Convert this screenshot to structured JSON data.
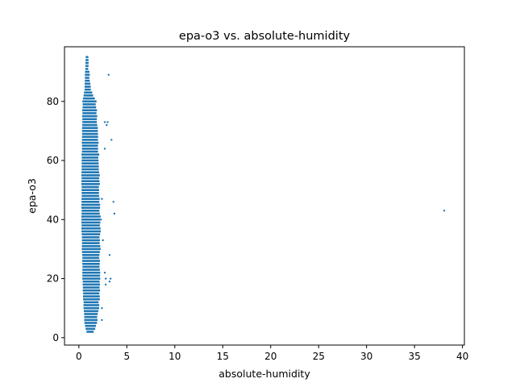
{
  "chart_data": {
    "type": "scatter",
    "title": "epa-o3 vs. absolute-humidity",
    "xlabel": "absolute-humidity",
    "ylabel": "epa-o3",
    "xlim": [
      -1.5,
      40.2
    ],
    "ylim": [
      -2.5,
      98.5
    ],
    "xticks": [
      0,
      5,
      10,
      15,
      20,
      25,
      30,
      35,
      40
    ],
    "yticks": [
      0,
      20,
      40,
      60,
      80
    ],
    "xtick_labels": [
      "0",
      "5",
      "10",
      "15",
      "20",
      "25",
      "30",
      "35",
      "40"
    ],
    "ytick_labels": [
      "0",
      "20",
      "40",
      "60",
      "80"
    ],
    "grid": false,
    "point_color": "#1f77b4",
    "dense_band": {
      "y_min": 2,
      "y_max": 95,
      "y_step": 1,
      "profile": [
        {
          "y": 2,
          "x_min": 0.8,
          "x_max": 1.6
        },
        {
          "y": 5,
          "x_min": 0.6,
          "x_max": 1.9
        },
        {
          "y": 12,
          "x_min": 0.5,
          "x_max": 2.1
        },
        {
          "y": 20,
          "x_min": 0.4,
          "x_max": 2.2
        },
        {
          "y": 40,
          "x_min": 0.3,
          "x_max": 2.2
        },
        {
          "y": 60,
          "x_min": 0.3,
          "x_max": 2.1
        },
        {
          "y": 70,
          "x_min": 0.35,
          "x_max": 2.0
        },
        {
          "y": 80,
          "x_min": 0.4,
          "x_max": 1.8
        },
        {
          "y": 84,
          "x_min": 0.6,
          "x_max": 1.3
        },
        {
          "y": 88,
          "x_min": 0.65,
          "x_max": 1.1
        },
        {
          "y": 92,
          "x_min": 0.7,
          "x_max": 1.0
        },
        {
          "y": 95,
          "x_min": 0.75,
          "x_max": 0.95
        }
      ]
    },
    "outliers": [
      {
        "x": 3.1,
        "y": 89
      },
      {
        "x": 2.7,
        "y": 73
      },
      {
        "x": 3.0,
        "y": 73
      },
      {
        "x": 2.9,
        "y": 72
      },
      {
        "x": 3.4,
        "y": 67
      },
      {
        "x": 2.7,
        "y": 64
      },
      {
        "x": 2.4,
        "y": 47
      },
      {
        "x": 3.6,
        "y": 46
      },
      {
        "x": 3.7,
        "y": 42
      },
      {
        "x": 2.3,
        "y": 40
      },
      {
        "x": 2.5,
        "y": 33
      },
      {
        "x": 3.2,
        "y": 28
      },
      {
        "x": 2.7,
        "y": 22
      },
      {
        "x": 2.8,
        "y": 20
      },
      {
        "x": 3.3,
        "y": 20
      },
      {
        "x": 3.2,
        "y": 19
      },
      {
        "x": 2.8,
        "y": 18
      },
      {
        "x": 2.4,
        "y": 10
      },
      {
        "x": 2.4,
        "y": 6
      },
      {
        "x": 38.1,
        "y": 43
      }
    ]
  }
}
